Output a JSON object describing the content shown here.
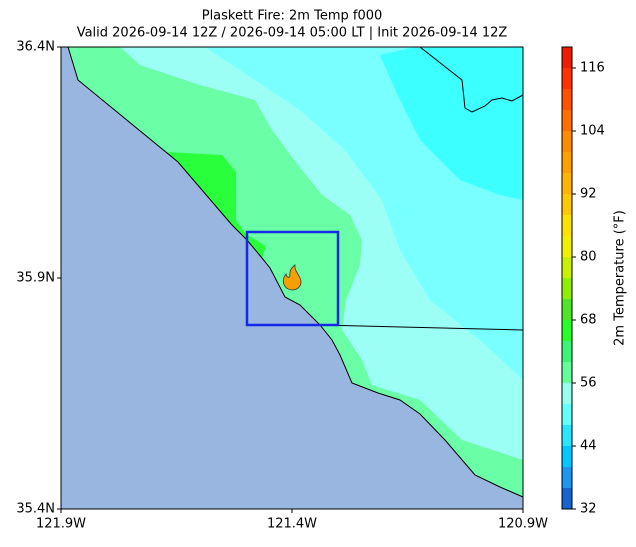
{
  "title": "Plaskett Fire: 2m Temp f000",
  "subtitle": "Valid 2026-09-14 12Z / 2026-09-14 05:00 LT | Init 2026-09-14 12Z",
  "map": {
    "xlim": [
      -121.9,
      -120.9
    ],
    "ylim": [
      35.4,
      36.4
    ],
    "xticks": [
      {
        "value": -121.9,
        "label": "121.9W"
      },
      {
        "value": -121.4,
        "label": "121.4W"
      },
      {
        "value": -120.9,
        "label": "120.9W"
      }
    ],
    "yticks": [
      {
        "value": 35.4,
        "label": "35.4N"
      },
      {
        "value": 35.9,
        "label": "35.9N"
      },
      {
        "value": 36.4,
        "label": "36.4N"
      }
    ]
  },
  "colorbar": {
    "label": "2m Temperature (°F)",
    "lim": [
      32,
      120
    ],
    "ticks": [
      32,
      44,
      56,
      68,
      80,
      92,
      104,
      116
    ],
    "levels": [
      32,
      36,
      40,
      44,
      48,
      52,
      56,
      60,
      64,
      68,
      72,
      76,
      80,
      84,
      88,
      92,
      96,
      100,
      104,
      108,
      112,
      116,
      120
    ],
    "colors": [
      "#1464d2",
      "#1e96f0",
      "#00c8ff",
      "#28e6ff",
      "#64ffff",
      "#96fff0",
      "#64ff9b",
      "#3cf578",
      "#28ff28",
      "#50e628",
      "#8cf000",
      "#c8f000",
      "#f0f000",
      "#ffe100",
      "#ffc800",
      "#ffb400",
      "#ffa000",
      "#ff8c00",
      "#ff6e00",
      "#ff5000",
      "#ff3200",
      "#f01e00"
    ]
  }
}
